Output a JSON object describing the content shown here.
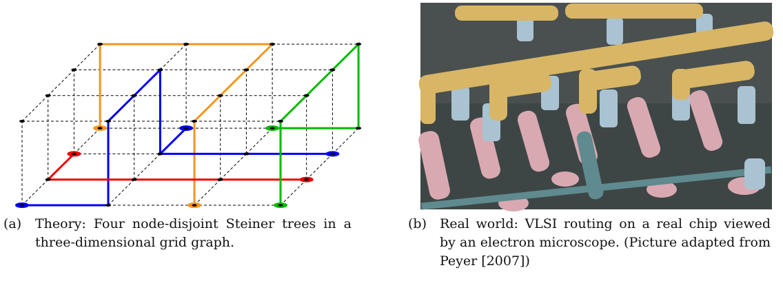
{
  "figures": [
    {
      "label": "(a)",
      "caption": "Theory: Four node-disjoint Steiner trees in a three-dimensional grid graph."
    },
    {
      "label": "(b)",
      "caption": "Real world: VLSI routing on a real chip viewed by an electron microscope. (Picture adapted from Peyer [2007])"
    }
  ]
}
